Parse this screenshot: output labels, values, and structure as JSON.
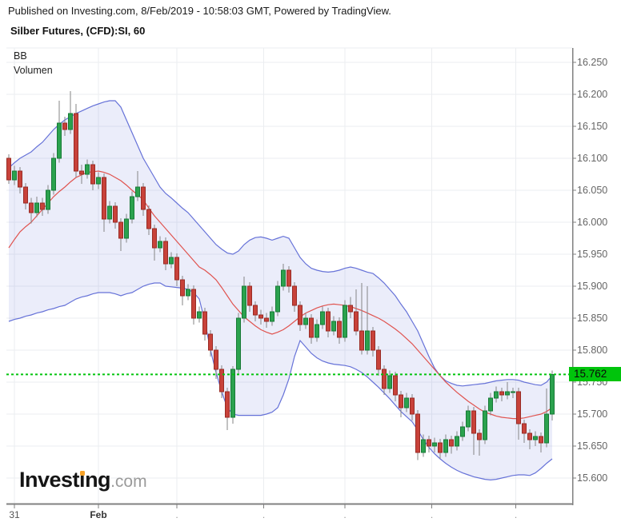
{
  "header": {
    "published": "Published on Investing.com, 8/Feb/2019 - 10:58:03 GMT, Powered by TradingView.",
    "title": "Silber Futures, (CFD):SI, 60"
  },
  "indicators": {
    "bb": "BB",
    "volume": "Volumen"
  },
  "logo": {
    "pre": "Invest",
    "i": "i",
    "post": "ng",
    "suffix": ".com",
    "dot_color": "#f7a228"
  },
  "last_price_label": "15.762",
  "colors": {
    "up_fill": "#2ba24e",
    "up_border": "#177a36",
    "down_fill": "#c8423a",
    "down_border": "#992b24",
    "wick": "#858585",
    "band_line": "#6672d8",
    "band_fill": "rgba(102,114,216,0.13)",
    "sma_line": "#e0534f",
    "last_price": "#00c40c",
    "last_price_text": "#0a0a0a",
    "grid": "#ebedf0",
    "axis": "#808080",
    "axis_label": "#656565"
  },
  "chart_data": {
    "type": "candlestick",
    "title": "Silber Futures, (CFD):SI, 60",
    "interval_minutes": 60,
    "overlays": [
      "BB",
      "Volumen"
    ],
    "legend_position": "top-left",
    "grid": true,
    "last_price": 15.762,
    "y_axis": {
      "min": 15.56,
      "max": 16.2725,
      "tick_step": 0.05,
      "ticks": [
        "16.250",
        "16.200",
        "16.150",
        "16.100",
        "16.050",
        "16.000",
        "15.950",
        "15.900",
        "15.850",
        "15.800",
        "15.750",
        "15.700",
        "15.650",
        "15.600"
      ]
    },
    "x_axis": {
      "ticks": [
        {
          "index": 1,
          "label": "31",
          "bold": false
        },
        {
          "index": 16,
          "label": "Feb",
          "bold": true
        },
        {
          "index": 30,
          "label": ".",
          "bold": false
        },
        {
          "index": 45.5,
          "label": ".",
          "bold": false
        },
        {
          "index": 60,
          "label": ".",
          "bold": false
        },
        {
          "index": 75.5,
          "label": ".",
          "bold": false
        },
        {
          "index": 90.5,
          "label": ".",
          "bold": false
        }
      ]
    },
    "candles": [
      [
        16.1,
        16.106,
        16.06,
        16.066
      ],
      [
        16.066,
        16.088,
        16.058,
        16.08
      ],
      [
        16.08,
        16.086,
        16.045,
        16.055
      ],
      [
        16.055,
        16.061,
        16.02,
        16.03
      ],
      [
        16.03,
        16.038,
        15.998,
        16.015
      ],
      [
        16.015,
        16.04,
        16.008,
        16.03
      ],
      [
        16.03,
        16.038,
        16.01,
        16.02
      ],
      [
        16.02,
        16.058,
        16.013,
        16.05
      ],
      [
        16.05,
        16.108,
        16.043,
        16.1
      ],
      [
        16.1,
        16.19,
        16.093,
        16.155
      ],
      [
        16.155,
        16.165,
        16.135,
        16.145
      ],
      [
        16.145,
        16.205,
        16.138,
        16.17
      ],
      [
        16.17,
        16.185,
        16.07,
        16.08
      ],
      [
        16.08,
        16.09,
        16.06,
        16.075
      ],
      [
        16.075,
        16.098,
        16.068,
        16.09
      ],
      [
        16.09,
        16.096,
        16.05,
        16.06
      ],
      [
        16.06,
        16.078,
        16.052,
        16.07
      ],
      [
        16.07,
        16.076,
        15.985,
        16.005
      ],
      [
        16.005,
        16.033,
        15.998,
        16.025
      ],
      [
        16.025,
        16.031,
        15.99,
        16.0
      ],
      [
        16.0,
        16.006,
        15.955,
        15.975
      ],
      [
        15.975,
        16.013,
        15.968,
        16.005
      ],
      [
        16.005,
        16.048,
        15.998,
        16.04
      ],
      [
        16.04,
        16.08,
        16.033,
        16.055
      ],
      [
        16.055,
        16.061,
        16.01,
        16.02
      ],
      [
        16.02,
        16.026,
        15.98,
        15.99
      ],
      [
        15.99,
        15.996,
        15.94,
        15.96
      ],
      [
        15.96,
        15.978,
        15.953,
        15.97
      ],
      [
        15.97,
        15.976,
        15.925,
        15.935
      ],
      [
        15.935,
        15.953,
        15.928,
        15.945
      ],
      [
        15.945,
        15.951,
        15.9,
        15.91
      ],
      [
        15.91,
        15.916,
        15.87,
        15.885
      ],
      [
        15.885,
        15.903,
        15.878,
        15.895
      ],
      [
        15.895,
        15.901,
        15.84,
        15.85
      ],
      [
        15.85,
        15.868,
        15.843,
        15.86
      ],
      [
        15.86,
        15.866,
        15.815,
        15.825
      ],
      [
        15.825,
        15.831,
        15.79,
        15.8
      ],
      [
        15.8,
        15.806,
        15.755,
        15.77
      ],
      [
        15.77,
        15.776,
        15.725,
        15.735
      ],
      [
        15.735,
        15.741,
        15.675,
        15.695
      ],
      [
        15.695,
        15.775,
        15.685,
        15.77
      ],
      [
        15.77,
        15.858,
        15.763,
        15.85
      ],
      [
        15.85,
        15.915,
        15.843,
        15.9
      ],
      [
        15.9,
        15.906,
        15.86,
        15.87
      ],
      [
        15.87,
        15.876,
        15.845,
        15.855
      ],
      [
        15.855,
        15.863,
        15.84,
        15.85
      ],
      [
        15.85,
        15.858,
        15.835,
        15.845
      ],
      [
        15.845,
        15.868,
        15.838,
        15.86
      ],
      [
        15.86,
        15.908,
        15.853,
        15.9
      ],
      [
        15.9,
        15.935,
        15.893,
        15.925
      ],
      [
        15.925,
        15.931,
        15.89,
        15.9
      ],
      [
        15.9,
        15.906,
        15.86,
        15.87
      ],
      [
        15.87,
        15.876,
        15.83,
        15.84
      ],
      [
        15.84,
        15.858,
        15.833,
        15.85
      ],
      [
        15.85,
        15.856,
        15.81,
        15.82
      ],
      [
        15.82,
        15.848,
        15.813,
        15.84
      ],
      [
        15.84,
        15.868,
        15.833,
        15.86
      ],
      [
        15.86,
        15.866,
        15.82,
        15.83
      ],
      [
        15.83,
        15.853,
        15.823,
        15.845
      ],
      [
        15.845,
        15.851,
        15.81,
        15.82
      ],
      [
        15.82,
        15.878,
        15.813,
        15.87
      ],
      [
        15.87,
        15.883,
        15.85,
        15.86
      ],
      [
        15.86,
        15.895,
        15.823,
        15.83
      ],
      [
        15.83,
        15.905,
        15.793,
        15.8
      ],
      [
        15.8,
        15.9,
        15.793,
        15.83
      ],
      [
        15.83,
        15.836,
        15.79,
        15.8
      ],
      [
        15.8,
        15.806,
        15.76,
        15.77
      ],
      [
        15.77,
        15.776,
        15.73,
        15.74
      ],
      [
        15.74,
        15.768,
        15.733,
        15.76
      ],
      [
        15.76,
        15.766,
        15.72,
        15.73
      ],
      [
        15.73,
        15.736,
        15.695,
        15.71
      ],
      [
        15.71,
        15.733,
        15.703,
        15.725
      ],
      [
        15.725,
        15.731,
        15.69,
        15.7
      ],
      [
        15.7,
        15.706,
        15.628,
        15.64
      ],
      [
        15.64,
        15.668,
        15.633,
        15.66
      ],
      [
        15.66,
        15.666,
        15.64,
        15.65
      ],
      [
        15.65,
        15.663,
        15.64,
        15.655
      ],
      [
        15.655,
        15.661,
        15.63,
        15.64
      ],
      [
        15.64,
        15.668,
        15.633,
        15.66
      ],
      [
        15.66,
        15.666,
        15.638,
        15.65
      ],
      [
        15.65,
        15.673,
        15.643,
        15.665
      ],
      [
        15.665,
        15.688,
        15.658,
        15.68
      ],
      [
        15.68,
        15.713,
        15.673,
        15.705
      ],
      [
        15.705,
        15.711,
        15.636,
        15.67
      ],
      [
        15.67,
        15.676,
        15.635,
        15.66
      ],
      [
        15.66,
        15.713,
        15.653,
        15.705
      ],
      [
        15.705,
        15.733,
        15.698,
        15.725
      ],
      [
        15.725,
        15.743,
        15.718,
        15.735
      ],
      [
        15.735,
        15.741,
        15.72,
        15.73
      ],
      [
        15.73,
        15.75,
        15.723,
        15.735
      ],
      [
        15.735,
        15.741,
        15.725,
        15.735
      ],
      [
        15.735,
        15.741,
        15.66,
        15.685
      ],
      [
        15.685,
        15.691,
        15.655,
        15.67
      ],
      [
        15.67,
        15.676,
        15.645,
        15.66
      ],
      [
        15.66,
        15.673,
        15.65,
        15.665
      ],
      [
        15.665,
        15.671,
        15.64,
        15.655
      ],
      [
        15.655,
        15.74,
        15.648,
        15.7
      ],
      [
        15.7,
        15.768,
        15.69,
        15.762
      ]
    ],
    "bollinger": {
      "upper": [
        16.085,
        16.093,
        16.1,
        16.105,
        16.11,
        16.118,
        16.125,
        16.135,
        16.145,
        16.153,
        16.16,
        16.165,
        16.17,
        16.174,
        16.178,
        16.182,
        16.185,
        16.188,
        16.19,
        16.19,
        16.18,
        16.16,
        16.14,
        16.12,
        16.1,
        16.085,
        16.07,
        16.055,
        16.045,
        16.038,
        16.03,
        16.022,
        16.015,
        16.005,
        15.995,
        15.985,
        15.975,
        15.965,
        15.958,
        15.952,
        15.95,
        15.955,
        15.965,
        15.972,
        15.976,
        15.977,
        15.975,
        15.972,
        15.975,
        15.978,
        15.975,
        15.96,
        15.945,
        15.935,
        15.928,
        15.925,
        15.923,
        15.922,
        15.923,
        15.925,
        15.928,
        15.93,
        15.928,
        15.925,
        15.922,
        15.92,
        15.913,
        15.905,
        15.895,
        15.885,
        15.872,
        15.86,
        15.845,
        15.83,
        15.81,
        15.79,
        15.772,
        15.76,
        15.752,
        15.748,
        15.745,
        15.744,
        15.745,
        15.746,
        15.747,
        15.748,
        15.75,
        15.752,
        15.753,
        15.754,
        15.754,
        15.753,
        15.75,
        15.748,
        15.746,
        15.745,
        15.75,
        15.76
      ],
      "middle": [
        15.96,
        15.973,
        15.985,
        15.993,
        16.0,
        16.01,
        16.02,
        16.03,
        16.04,
        16.048,
        16.055,
        16.063,
        16.07,
        16.074,
        16.078,
        16.079,
        16.08,
        16.078,
        16.075,
        16.07,
        16.065,
        16.058,
        16.05,
        16.043,
        16.035,
        16.022,
        16.01,
        16.0,
        15.99,
        15.98,
        15.97,
        15.96,
        15.95,
        15.94,
        15.93,
        15.925,
        15.918,
        15.91,
        15.898,
        15.885,
        15.872,
        15.862,
        15.852,
        15.845,
        15.838,
        15.832,
        15.828,
        15.825,
        15.828,
        15.832,
        15.838,
        15.845,
        15.852,
        15.858,
        15.862,
        15.866,
        15.869,
        15.871,
        15.872,
        15.871,
        15.87,
        15.868,
        15.865,
        15.862,
        15.858,
        15.854,
        15.85,
        15.845,
        15.839,
        15.833,
        15.826,
        15.818,
        15.81,
        15.8,
        15.79,
        15.78,
        15.77,
        15.76,
        15.75,
        15.742,
        15.734,
        15.727,
        15.72,
        15.714,
        15.708,
        15.703,
        15.7,
        15.697,
        15.695,
        15.694,
        15.693,
        15.693,
        15.694,
        15.696,
        15.698,
        15.7,
        15.704,
        15.71
      ],
      "lower": [
        15.845,
        15.848,
        15.85,
        15.853,
        15.855,
        15.858,
        15.86,
        15.863,
        15.865,
        15.868,
        15.87,
        15.875,
        15.88,
        15.883,
        15.885,
        15.888,
        15.89,
        15.89,
        15.89,
        15.888,
        15.885,
        15.888,
        15.89,
        15.895,
        15.9,
        15.903,
        15.905,
        15.905,
        15.9,
        15.899,
        15.898,
        15.897,
        15.895,
        15.89,
        15.88,
        15.845,
        15.8,
        15.765,
        15.735,
        15.71,
        15.7,
        15.698,
        15.698,
        15.698,
        15.698,
        15.698,
        15.7,
        15.703,
        15.71,
        15.73,
        15.755,
        15.79,
        15.815,
        15.805,
        15.795,
        15.788,
        15.783,
        15.78,
        15.778,
        15.777,
        15.776,
        15.774,
        15.77,
        15.765,
        15.758,
        15.75,
        15.742,
        15.733,
        15.724,
        15.714,
        15.704,
        15.696,
        15.688,
        15.675,
        15.66,
        15.648,
        15.638,
        15.63,
        15.623,
        15.617,
        15.612,
        15.608,
        15.605,
        15.602,
        15.6,
        15.598,
        15.597,
        15.598,
        15.6,
        15.602,
        15.604,
        15.605,
        15.605,
        15.604,
        15.608,
        15.615,
        15.623,
        15.63
      ]
    }
  }
}
